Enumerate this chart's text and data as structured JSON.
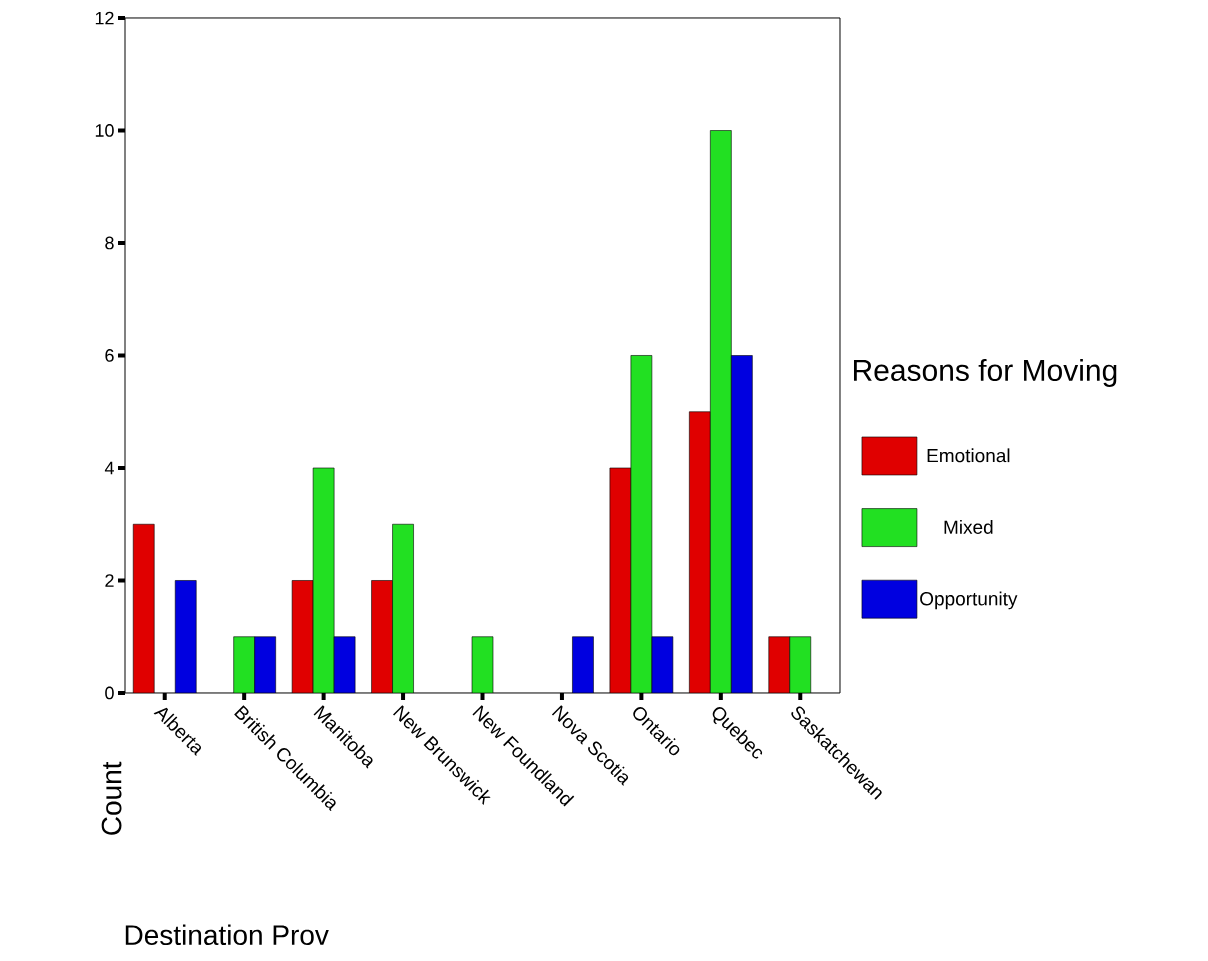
{
  "chart_data": {
    "type": "bar",
    "xlabel": "Destination Prov",
    "ylabel": "Count",
    "legend_title": "Reasons for Moving",
    "legend": "right",
    "categories": [
      "Alberta",
      "British Columbia",
      "Manitoba",
      "New Brunswick",
      "New Foundland",
      "Nova Scotia",
      "Ontario",
      "Quebec",
      "Saskatchewan"
    ],
    "ylim": [
      0,
      12
    ],
    "yticks": [
      0,
      2,
      4,
      6,
      8,
      10,
      12
    ],
    "series": [
      {
        "name": "Emotional",
        "color": "#e00000",
        "values": [
          3,
          null,
          2,
          2,
          null,
          null,
          4,
          5,
          1
        ]
      },
      {
        "name": "Mixed",
        "color": "#22e022",
        "values": [
          null,
          1,
          4,
          3,
          1,
          null,
          6,
          10,
          1
        ]
      },
      {
        "name": "Opportunity",
        "color": "#0000e0",
        "values": [
          2,
          1,
          1,
          null,
          null,
          1,
          1,
          6,
          null
        ]
      }
    ]
  }
}
